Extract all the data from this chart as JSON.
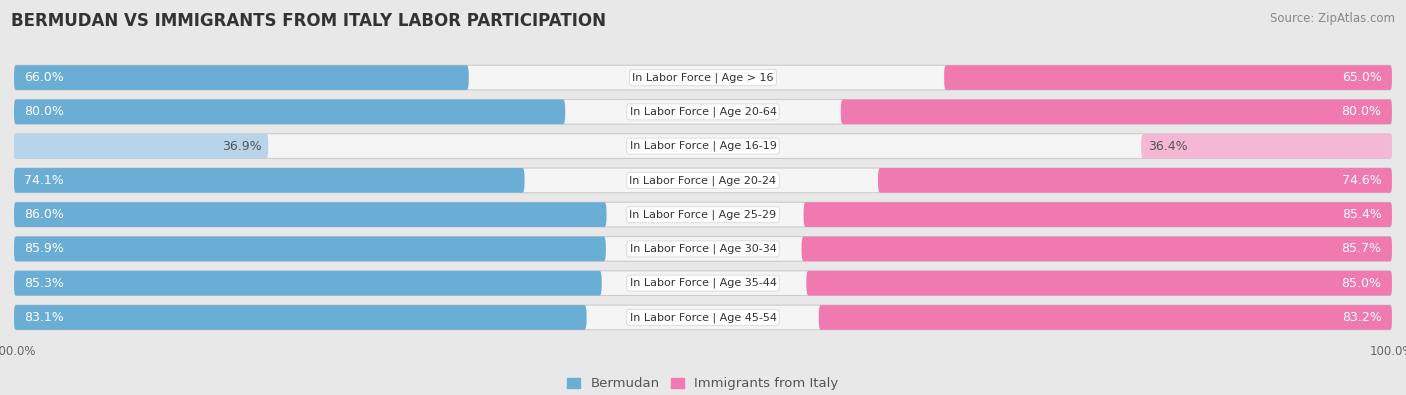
{
  "title": "BERMUDAN VS IMMIGRANTS FROM ITALY LABOR PARTICIPATION",
  "source": "Source: ZipAtlas.com",
  "categories": [
    "In Labor Force | Age > 16",
    "In Labor Force | Age 20-64",
    "In Labor Force | Age 16-19",
    "In Labor Force | Age 20-24",
    "In Labor Force | Age 25-29",
    "In Labor Force | Age 30-34",
    "In Labor Force | Age 35-44",
    "In Labor Force | Age 45-54"
  ],
  "bermudan_values": [
    66.0,
    80.0,
    36.9,
    74.1,
    86.0,
    85.9,
    85.3,
    83.1
  ],
  "italy_values": [
    65.0,
    80.0,
    36.4,
    74.6,
    85.4,
    85.7,
    85.0,
    83.2
  ],
  "bermudan_color_strong": "#6aaed6",
  "bermudan_color_light": "#b8d4ea",
  "italy_color_strong": "#f07ab0",
  "italy_color_light": "#f5b8d4",
  "label_color_strong": "#ffffff",
  "label_color_light": "#555555",
  "threshold": 50.0,
  "bg_color": "#e8e8e8",
  "row_bg_color": "#f5f5f5",
  "bar_height": 0.72,
  "x_max": 100.0,
  "title_fontsize": 12,
  "source_fontsize": 8.5,
  "bar_label_fontsize": 9,
  "category_fontsize": 8,
  "legend_fontsize": 9.5,
  "axis_label_fontsize": 8.5
}
